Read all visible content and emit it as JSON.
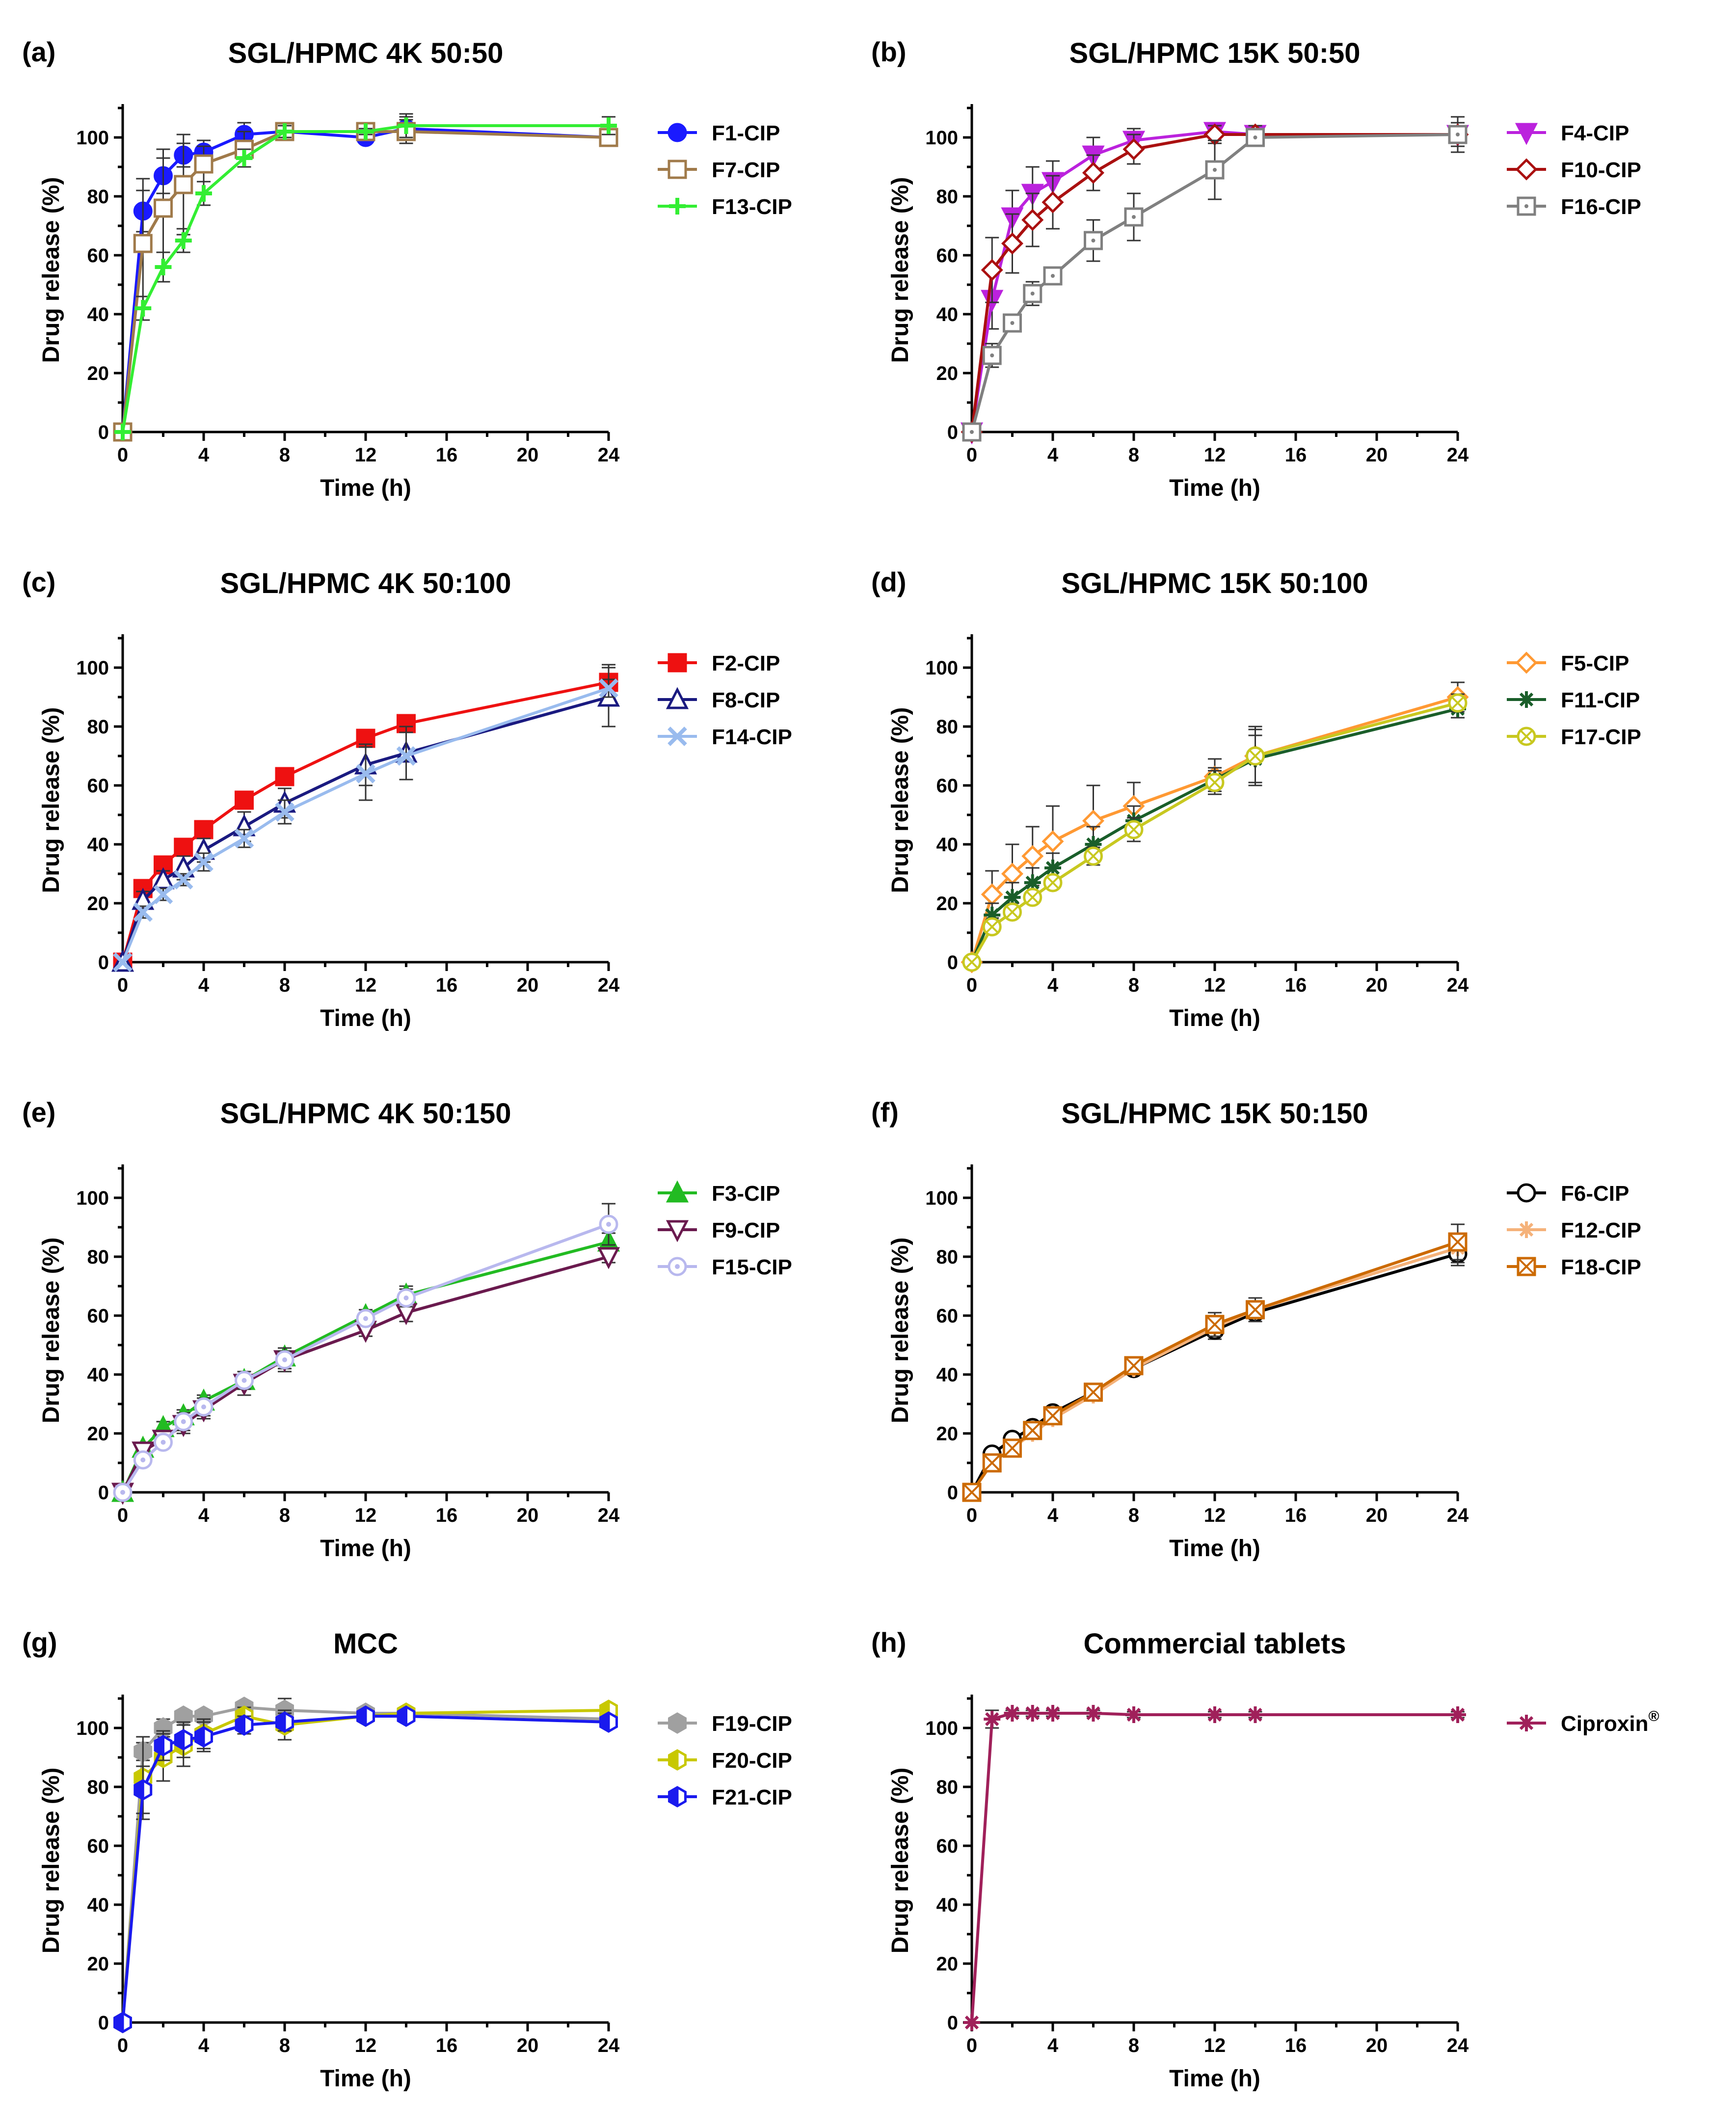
{
  "figure": {
    "axis": {
      "xlabel": "Time (h)",
      "ylabel": "Drug release (%)",
      "xticks": [
        "0",
        "4",
        "8",
        "12",
        "16",
        "20",
        "24"
      ],
      "yticks": [
        "0",
        "20",
        "40",
        "60",
        "80",
        "100"
      ]
    }
  },
  "chart_data": [
    {
      "type": "line",
      "panel": "(a)",
      "title": "SGL/HPMC 4K 50:50",
      "xlabel": "Time (h)",
      "ylabel": "Drug release (%)",
      "xlim": [
        0,
        24
      ],
      "ylim": [
        0,
        110
      ],
      "x": [
        0,
        1,
        2,
        3,
        4,
        6,
        8,
        12,
        14,
        24
      ],
      "series": [
        {
          "name": "F1-CIP",
          "color": "#1a1aff",
          "marker": "circle",
          "fill": "solid",
          "values": [
            0,
            75,
            87,
            94,
            95,
            101,
            102,
            100,
            103,
            100
          ],
          "errors": [
            0,
            7,
            6,
            4,
            4,
            4,
            2,
            1,
            4,
            3
          ]
        },
        {
          "name": "F7-CIP",
          "color": "#a07a4a",
          "marker": "square",
          "fill": "open",
          "values": [
            0,
            64,
            76,
            84,
            91,
            96,
            102,
            102,
            102,
            100
          ],
          "errors": [
            0,
            22,
            20,
            17,
            6,
            6,
            1,
            1,
            4,
            2
          ]
        },
        {
          "name": "F13-CIP",
          "color": "#33ee33",
          "marker": "plus",
          "fill": "solid",
          "values": [
            0,
            42,
            56,
            65,
            81,
            93,
            102,
            102,
            104,
            104
          ],
          "errors": [
            0,
            4,
            5,
            4,
            4,
            3,
            2,
            1,
            4,
            3
          ]
        }
      ]
    },
    {
      "type": "line",
      "panel": "(b)",
      "title": "SGL/HPMC 15K 50:50",
      "xlabel": "Time (h)",
      "ylabel": "Drug release (%)",
      "xlim": [
        0,
        24
      ],
      "ylim": [
        0,
        110
      ],
      "x": [
        0,
        1,
        2,
        3,
        4,
        6,
        8,
        12,
        14,
        24
      ],
      "series": [
        {
          "name": "F4-CIP",
          "color": "#bb22dd",
          "marker": "triangle-down",
          "fill": "solid",
          "values": [
            0,
            45,
            73,
            81,
            85,
            94,
            99,
            102,
            101,
            101
          ],
          "errors": [
            0,
            10,
            9,
            9,
            7,
            6,
            4,
            3,
            3,
            6
          ]
        },
        {
          "name": "F10-CIP",
          "color": "#aa1010",
          "marker": "diamond",
          "fill": "open",
          "values": [
            0,
            55,
            64,
            72,
            78,
            88,
            96,
            101,
            101,
            101
          ],
          "errors": [
            0,
            11,
            10,
            9,
            9,
            6,
            5,
            3,
            3,
            4
          ]
        },
        {
          "name": "F16-CIP",
          "color": "#808080",
          "marker": "square-dot",
          "fill": "open",
          "values": [
            0,
            26,
            37,
            47,
            53,
            65,
            73,
            89,
            100,
            101
          ],
          "errors": [
            0,
            4,
            3,
            4,
            3,
            7,
            8,
            10,
            3,
            3
          ]
        }
      ]
    },
    {
      "type": "line",
      "panel": "(c)",
      "title": "SGL/HPMC 4K 50:100",
      "xlabel": "Time (h)",
      "ylabel": "Drug release (%)",
      "xlim": [
        0,
        24
      ],
      "ylim": [
        0,
        110
      ],
      "x": [
        0,
        1,
        2,
        3,
        4,
        6,
        8,
        12,
        14,
        24
      ],
      "series": [
        {
          "name": "F2-CIP",
          "color": "#ee1111",
          "marker": "square",
          "fill": "solid",
          "values": [
            0,
            25,
            33,
            39,
            45,
            55,
            63,
            76,
            81,
            95
          ],
          "errors": [
            0,
            2,
            2,
            2,
            2,
            2,
            2,
            2,
            2,
            6
          ]
        },
        {
          "name": "F8-CIP",
          "color": "#1a1a80",
          "marker": "triangle",
          "fill": "open",
          "values": [
            0,
            21,
            28,
            32,
            38,
            46,
            54,
            67,
            71,
            90
          ],
          "errors": [
            0,
            3,
            3,
            4,
            4,
            5,
            5,
            7,
            9,
            10
          ]
        },
        {
          "name": "F14-CIP",
          "color": "#99bbee",
          "marker": "x",
          "fill": "solid",
          "values": [
            0,
            17,
            23,
            28,
            34,
            42,
            51,
            64,
            70,
            93
          ],
          "errors": [
            0,
            2,
            2,
            2,
            3,
            3,
            4,
            9,
            8,
            3
          ]
        }
      ]
    },
    {
      "type": "line",
      "panel": "(d)",
      "title": "SGL/HPMC 15K 50:100",
      "xlabel": "Time (h)",
      "ylabel": "Drug release (%)",
      "xlim": [
        0,
        24
      ],
      "ylim": [
        0,
        110
      ],
      "x": [
        0,
        1,
        2,
        3,
        4,
        6,
        8,
        12,
        14,
        24
      ],
      "series": [
        {
          "name": "F5-CIP",
          "color": "#ff9933",
          "marker": "diamond",
          "fill": "open",
          "values": [
            0,
            23,
            30,
            36,
            41,
            48,
            53,
            63,
            70,
            90
          ],
          "errors": [
            0,
            8,
            10,
            10,
            12,
            12,
            8,
            6,
            10,
            5
          ]
        },
        {
          "name": "F11-CIP",
          "color": "#1a5e2a",
          "marker": "star",
          "fill": "solid",
          "values": [
            0,
            16,
            22,
            27,
            32,
            40,
            48,
            62,
            69,
            86
          ],
          "errors": [
            0,
            4,
            5,
            5,
            5,
            6,
            5,
            4,
            8,
            3
          ]
        },
        {
          "name": "F17-CIP",
          "color": "#c8c820",
          "marker": "circle-x",
          "fill": "open",
          "values": [
            0,
            12,
            17,
            22,
            27,
            36,
            45,
            61,
            70,
            88
          ],
          "errors": [
            0,
            2,
            2,
            2,
            2,
            3,
            4,
            4,
            9,
            3
          ]
        }
      ]
    },
    {
      "type": "line",
      "panel": "(e)",
      "title": "SGL/HPMC 4K 50:150",
      "xlabel": "Time (h)",
      "ylabel": "Drug release (%)",
      "xlim": [
        0,
        24
      ],
      "ylim": [
        0,
        110
      ],
      "x": [
        0,
        1,
        2,
        3,
        4,
        6,
        8,
        12,
        14,
        24
      ],
      "series": [
        {
          "name": "F3-CIP",
          "color": "#22bb22",
          "marker": "triangle",
          "fill": "solid",
          "values": [
            0,
            15,
            22,
            26,
            31,
            38,
            46,
            60,
            67,
            85
          ],
          "errors": [
            0,
            2,
            2,
            2,
            2,
            3,
            3,
            2,
            3,
            3
          ]
        },
        {
          "name": "F9-CIP",
          "color": "#6a1a4e",
          "marker": "triangle-down",
          "fill": "open",
          "values": [
            0,
            14,
            18,
            23,
            28,
            37,
            45,
            55,
            61,
            80
          ],
          "errors": [
            0,
            2,
            2,
            3,
            3,
            4,
            4,
            2,
            3,
            2
          ]
        },
        {
          "name": "F15-CIP",
          "color": "#b8b8ee",
          "marker": "circle-dot",
          "fill": "open",
          "values": [
            0,
            11,
            17,
            24,
            29,
            38,
            45,
            59,
            66,
            91
          ],
          "errors": [
            0,
            2,
            2,
            3,
            3,
            3,
            3,
            2,
            3,
            7
          ]
        }
      ]
    },
    {
      "type": "line",
      "panel": "(f)",
      "title": "SGL/HPMC 15K 50:150",
      "xlabel": "Time (h)",
      "ylabel": "Drug release (%)",
      "xlim": [
        0,
        24
      ],
      "ylim": [
        0,
        110
      ],
      "x": [
        0,
        1,
        2,
        3,
        4,
        6,
        8,
        12,
        14,
        24
      ],
      "series": [
        {
          "name": "F6-CIP",
          "color": "#000000",
          "marker": "circle",
          "fill": "open",
          "values": [
            0,
            13,
            18,
            22,
            27,
            34,
            42,
            55,
            61,
            81
          ],
          "errors": [
            0,
            1,
            1,
            1,
            1,
            2,
            2,
            3,
            3,
            4
          ]
        },
        {
          "name": "F12-CIP",
          "color": "#f5b27a",
          "marker": "star",
          "fill": "solid",
          "values": [
            0,
            10,
            15,
            20,
            25,
            33,
            42,
            56,
            62,
            83
          ],
          "errors": [
            0,
            1,
            1,
            1,
            1,
            2,
            2,
            3,
            3,
            5
          ]
        },
        {
          "name": "F18-CIP",
          "color": "#cc6a00",
          "marker": "square-x",
          "fill": "open",
          "values": [
            0,
            10,
            15,
            21,
            26,
            34,
            43,
            57,
            62,
            85
          ],
          "errors": [
            0,
            1,
            1,
            1,
            1,
            2,
            2,
            4,
            4,
            6
          ]
        }
      ]
    },
    {
      "type": "line",
      "panel": "(g)",
      "title": "MCC",
      "xlabel": "Time (h)",
      "ylabel": "Drug release (%)",
      "xlim": [
        0,
        24
      ],
      "ylim": [
        0,
        110
      ],
      "x": [
        0,
        1,
        2,
        3,
        4,
        6,
        8,
        12,
        14,
        24
      ],
      "series": [
        {
          "name": "F19-CIP",
          "color": "#a0a0a0",
          "marker": "hexagon",
          "fill": "solid",
          "values": [
            0,
            92,
            100,
            104,
            104,
            107,
            106,
            105,
            105,
            103
          ],
          "errors": [
            0,
            3,
            3,
            2,
            2,
            2,
            4,
            2,
            2,
            2
          ]
        },
        {
          "name": "F20-CIP",
          "color": "#c8c800",
          "marker": "hexagon-half",
          "fill": "open",
          "values": [
            0,
            83,
            90,
            94,
            98,
            104,
            101,
            104,
            105,
            106
          ],
          "errors": [
            0,
            14,
            8,
            7,
            5,
            3,
            5,
            2,
            2,
            2
          ]
        },
        {
          "name": "F21-CIP",
          "color": "#1a1aee",
          "marker": "hexagon-half",
          "fill": "open",
          "values": [
            0,
            79,
            94,
            96,
            97,
            101,
            102,
            104,
            104,
            102
          ],
          "errors": [
            0,
            8,
            5,
            6,
            5,
            3,
            3,
            2,
            2,
            2
          ]
        }
      ]
    },
    {
      "type": "line",
      "panel": "(h)",
      "title": "Commercial tablets",
      "xlabel": "Time (h)",
      "ylabel": "Drug release (%)",
      "xlim": [
        0,
        24
      ],
      "ylim": [
        0,
        110
      ],
      "x": [
        0,
        1,
        2,
        3,
        4,
        6,
        8,
        12,
        14,
        24
      ],
      "series": [
        {
          "name": "Ciproxin",
          "superscript": "®",
          "color": "#a0205a",
          "marker": "star",
          "fill": "solid",
          "values": [
            0,
            103,
            105,
            105,
            105,
            105,
            104.5,
            104.5,
            104.5,
            104.5
          ],
          "errors": [
            0,
            3,
            1,
            1,
            1,
            1,
            1,
            1,
            1,
            1
          ]
        }
      ]
    }
  ]
}
